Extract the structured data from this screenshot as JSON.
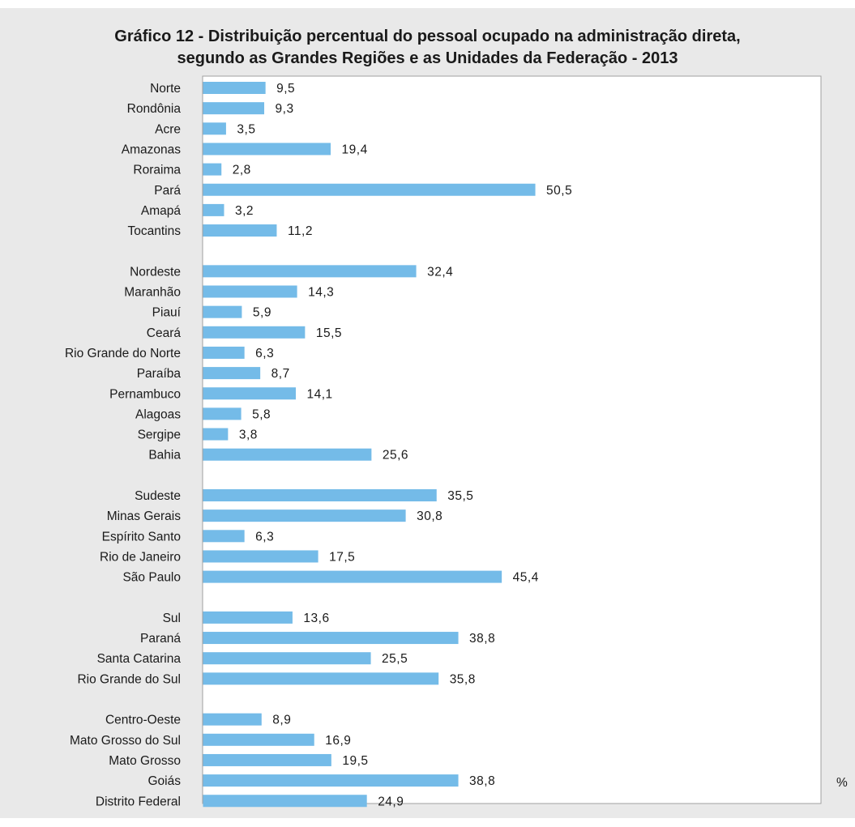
{
  "chart_data": {
    "type": "bar",
    "orientation": "horizontal",
    "title": [
      "Gráfico 12 - Distribuição percentual do pessoal ocupado na administração direta,",
      "segundo as Grandes Regiões e as Unidades da Federação - 2013"
    ],
    "unit": "%",
    "bar_color": "#74bbe8",
    "groups": [
      {
        "categories": [
          "Norte",
          "Rondônia",
          "Acre",
          "Amazonas",
          "Roraima",
          "Pará",
          "Amapá",
          "Tocantins"
        ],
        "values": [
          9.5,
          9.3,
          3.5,
          19.4,
          2.8,
          50.5,
          3.2,
          11.2
        ],
        "labels": [
          "9,5",
          "9,3",
          "3,5",
          "19,4",
          "2,8",
          "50,5",
          "3,2",
          "11,2"
        ]
      },
      {
        "categories": [
          "Nordeste",
          "Maranhão",
          "Piauí",
          "Ceará",
          "Rio Grande do Norte",
          "Paraíba",
          "Pernambuco",
          "Alagoas",
          "Sergipe",
          "Bahia"
        ],
        "values": [
          32.4,
          14.3,
          5.9,
          15.5,
          6.3,
          8.7,
          14.1,
          5.8,
          3.8,
          25.6
        ],
        "labels": [
          "32,4",
          "14,3",
          "5,9",
          "15,5",
          "6,3",
          "8,7",
          "14,1",
          "5,8",
          "3,8",
          "25,6"
        ]
      },
      {
        "categories": [
          "Sudeste",
          "Minas Gerais",
          "Espírito Santo",
          "Rio de Janeiro",
          "São Paulo"
        ],
        "values": [
          35.5,
          30.8,
          6.3,
          17.5,
          45.4
        ],
        "labels": [
          "35,5",
          "30,8",
          "6,3",
          "17,5",
          "45,4"
        ]
      },
      {
        "categories": [
          "Sul",
          "Paraná",
          "Santa Catarina",
          "Rio Grande do Sul"
        ],
        "values": [
          13.6,
          38.8,
          25.5,
          35.8
        ],
        "labels": [
          "13,6",
          "38,8",
          "25,5",
          "35,8"
        ]
      },
      {
        "categories": [
          "Centro-Oeste",
          "Mato Grosso do Sul",
          "Mato Grosso",
          "Goiás",
          "Distrito Federal"
        ],
        "values": [
          8.9,
          16.9,
          19.5,
          38.8,
          24.9
        ],
        "labels": [
          "8,9",
          "16,9",
          "19,5",
          "38,8",
          "24,9"
        ]
      }
    ]
  }
}
